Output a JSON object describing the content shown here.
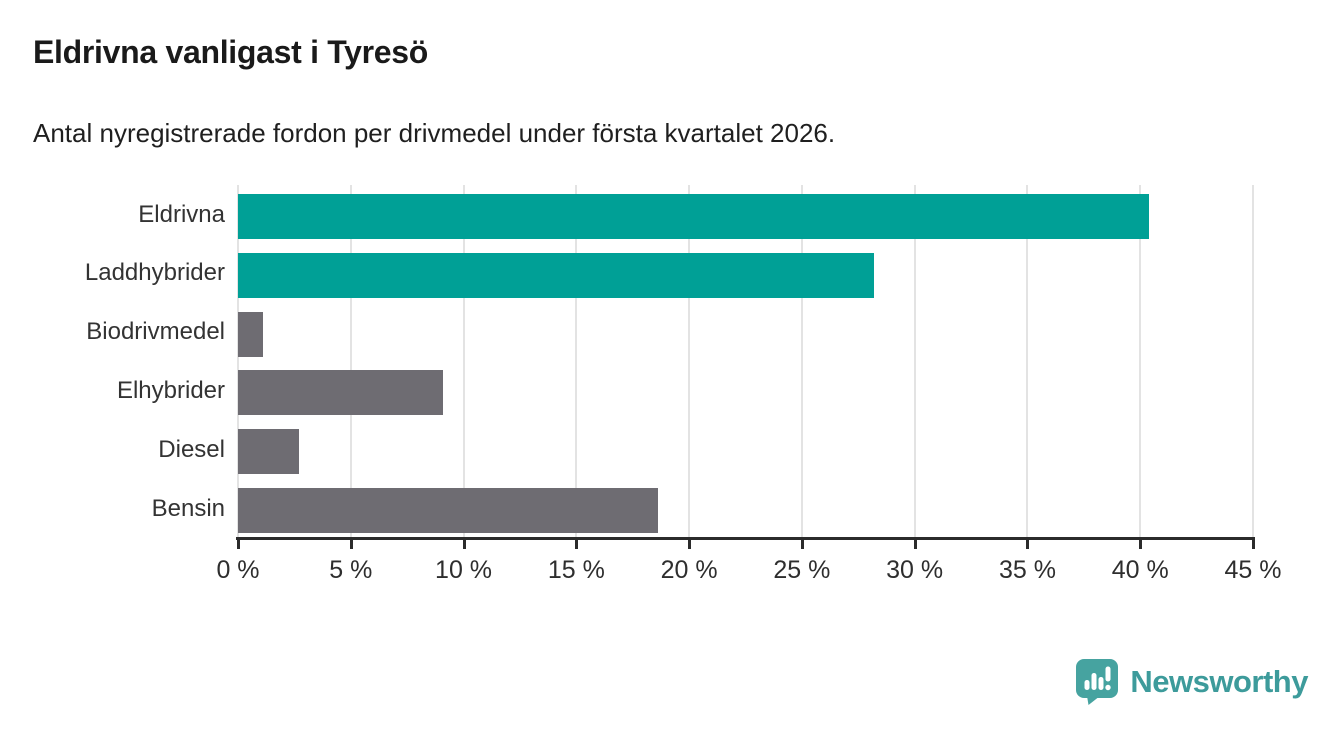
{
  "title": "Eldrivna vanligast i Tyresö",
  "subtitle": "Antal nyregistrerade fordon per drivmedel under första kvartalet 2026.",
  "branding": {
    "wordmark": "Newsworthy",
    "logo_icon": "newsworthy-speech-bubble-bar-chart-icon",
    "brand_color": "#3d9b9b",
    "logo_fill": "#46a3a0"
  },
  "colors": {
    "highlight_teal": "#00a096",
    "neutral_gray": "#6e6c72",
    "axis": "#2b2b2b",
    "gridline": "#e3e3e3",
    "title_text": "#1a1a1a",
    "label_text": "#333333"
  },
  "chart_data": {
    "type": "bar",
    "orientation": "horizontal",
    "title": "Eldrivna vanligast i Tyresö",
    "subtitle": "Antal nyregistrerade fordon per drivmedel under första kvartalet 2026.",
    "categories": [
      "Eldrivna",
      "Laddhybrider",
      "Biodrivmedel",
      "Elhybrider",
      "Diesel",
      "Bensin"
    ],
    "values": [
      40.4,
      28.2,
      1.1,
      9.1,
      2.7,
      18.6
    ],
    "unit": "%",
    "bar_colors": [
      "#00a096",
      "#00a096",
      "#6e6c72",
      "#6e6c72",
      "#6e6c72",
      "#6e6c72"
    ],
    "xlabel": "",
    "ylabel": "",
    "xlim": [
      0,
      45
    ],
    "x_tick_step": 5,
    "x_tick_labels": [
      "0 %",
      "5 %",
      "10 %",
      "15 %",
      "20 %",
      "25 %",
      "30 %",
      "35 %",
      "40 %",
      "45 %"
    ],
    "grid": "vertical",
    "legend": "none"
  }
}
